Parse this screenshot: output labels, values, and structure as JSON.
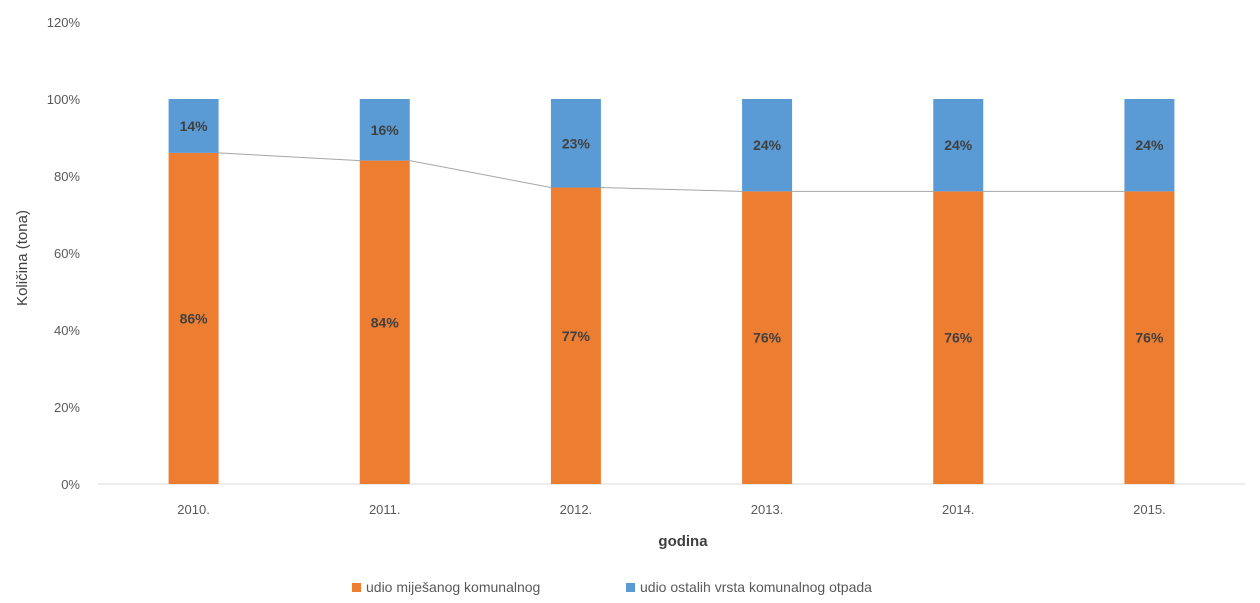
{
  "chart_data": {
    "type": "bar",
    "stacked": true,
    "percent": true,
    "categories": [
      "2010.",
      "2011.",
      "2012.",
      "2013.",
      "2014.",
      "2015."
    ],
    "series": [
      {
        "name": "udio miješanog komunalnog",
        "color": "#ED7D31",
        "values": [
          86,
          84,
          77,
          76,
          76,
          76
        ],
        "labels": [
          "86%",
          "84%",
          "77%",
          "76%",
          "76%",
          "76%"
        ]
      },
      {
        "name": "udio ostalih vrsta komunalnog otpada",
        "color": "#5B9BD5",
        "values": [
          14,
          16,
          23,
          24,
          24,
          24
        ],
        "labels": [
          "14%",
          "16%",
          "23%",
          "24%",
          "24%",
          "24%"
        ]
      }
    ],
    "xlabel": "godina",
    "ylabel": "Količina (tona)",
    "ylim": [
      0,
      120
    ],
    "yticks": [
      "0%",
      "20%",
      "40%",
      "60%",
      "80%",
      "100%",
      "120%"
    ],
    "grid": false,
    "series_lines": true,
    "legend": "bottom"
  }
}
